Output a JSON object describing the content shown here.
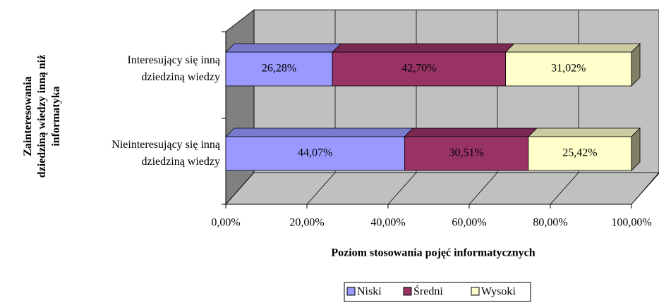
{
  "chart_data": {
    "type": "bar_stacked_horizontal_3d",
    "x_label": "Poziom stosowania pojęć informatycznych",
    "y_label": "Zainteresowania dziedziną wiedzy inną niż informatyka",
    "categories": [
      "Interesujący się inną dziedziną wiedzy",
      "Nieinteresujący się inną dziedziną wiedzy"
    ],
    "series": [
      {
        "name": "Niski",
        "color": "#9999ff",
        "values": [
          26.28,
          44.07
        ],
        "value_labels": [
          "26,28%",
          "44,07%"
        ]
      },
      {
        "name": "Średni",
        "color": "#993366",
        "values": [
          42.7,
          30.51
        ],
        "value_labels": [
          "42,70%",
          "30,51%"
        ]
      },
      {
        "name": "Wysoki",
        "color": "#ffffcc",
        "values": [
          31.02,
          25.42
        ],
        "value_labels": [
          "31,02%",
          "25,42%"
        ]
      }
    ],
    "xlim": [
      0,
      100
    ],
    "xticks": [
      {
        "value": 0,
        "label": "0,00%"
      },
      {
        "value": 20,
        "label": "20,00%"
      },
      {
        "value": 40,
        "label": "40,00%"
      },
      {
        "value": 60,
        "label": "60,00%"
      },
      {
        "value": 80,
        "label": "80,00%"
      },
      {
        "value": 100,
        "label": "100,00%"
      }
    ],
    "grid": true,
    "legend": "bottom"
  }
}
